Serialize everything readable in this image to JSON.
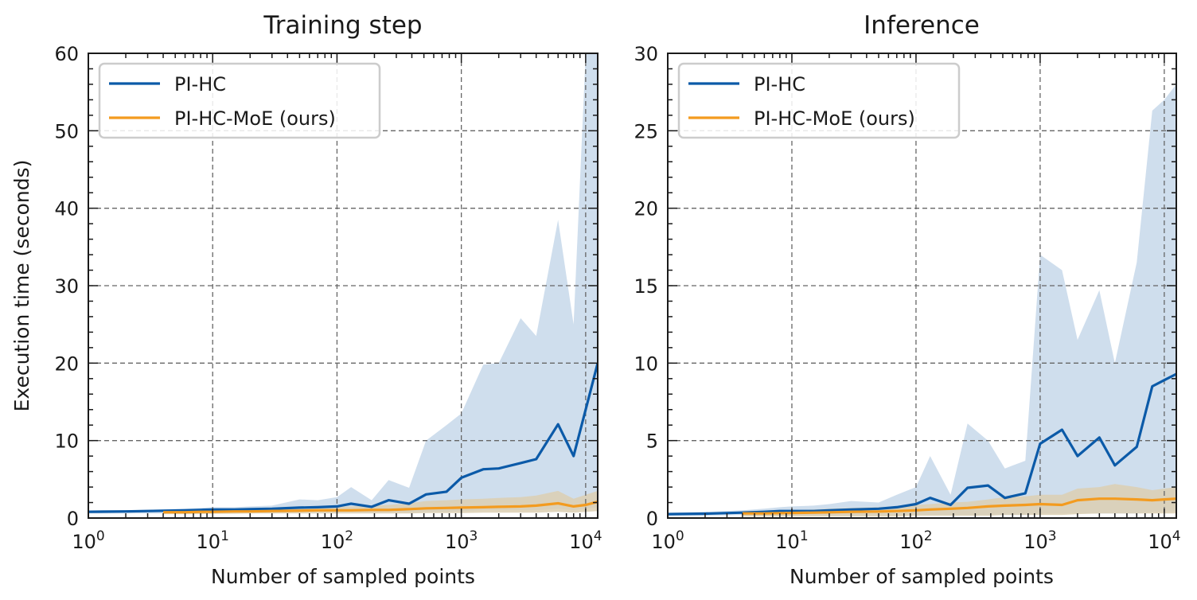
{
  "colors": {
    "pihc_line": "#0b5aa8",
    "pihc_band": "#cfdeed",
    "moe_line": "#f39b1f",
    "moe_band": "#dccfb2",
    "grid": "#666666"
  },
  "shared": {
    "ylabel": "Execution time (seconds)",
    "xlabel": "Number of sampled points",
    "xtick_labels": [
      "10^0",
      "10^1",
      "10^2",
      "10^3",
      "10^4"
    ]
  },
  "chart_data": [
    {
      "type": "line",
      "title": "Training step",
      "xlabel": "Number of sampled points",
      "ylabel": "Execution time (seconds)",
      "xscale": "log",
      "xlim": [
        1,
        12500
      ],
      "ylim": [
        0,
        60
      ],
      "yticks": [
        0,
        10,
        20,
        30,
        40,
        50,
        60
      ],
      "ytick_labels": [
        "0",
        "10",
        "20",
        "30",
        "40",
        "50",
        "60"
      ],
      "grid": true,
      "legend": "top-left",
      "series": [
        {
          "name": "PI-HC",
          "color": "#0b5aa8",
          "x": [
            1,
            2,
            4,
            6,
            8,
            10,
            15,
            20,
            30,
            50,
            70,
            100,
            130,
            190,
            260,
            380,
            520,
            760,
            1000,
            1500,
            2000,
            3000,
            4000,
            6000,
            8000,
            10000,
            12500
          ],
          "y": [
            0.8,
            0.85,
            0.95,
            1.0,
            1.05,
            1.1,
            1.1,
            1.15,
            1.2,
            1.35,
            1.4,
            1.5,
            1.85,
            1.45,
            2.3,
            1.85,
            3.05,
            3.4,
            5.2,
            6.3,
            6.4,
            7.1,
            7.6,
            12.1,
            8.0,
            14.0,
            20.0
          ],
          "lower": [
            0.6,
            0.6,
            0.6,
            0.65,
            0.7,
            0.7,
            0.7,
            0.7,
            0.7,
            0.8,
            0.8,
            0.8,
            0.8,
            0.7,
            0.8,
            0.7,
            0.8,
            0.8,
            0.9,
            1.0,
            1.0,
            1.0,
            1.0,
            1.2,
            1.0,
            1.2,
            1.4
          ],
          "upper": [
            1.0,
            1.0,
            1.1,
            1.2,
            1.3,
            1.4,
            1.4,
            1.5,
            1.6,
            2.4,
            2.3,
            2.7,
            4.0,
            2.3,
            4.9,
            3.9,
            10.0,
            12.0,
            13.5,
            19.8,
            20.0,
            25.8,
            23.5,
            38.5,
            25.0,
            60.0,
            60.0
          ]
        },
        {
          "name": "PI-HC-MoE (ours)",
          "color": "#f39b1f",
          "x": [
            4,
            6,
            8,
            10,
            15,
            20,
            30,
            50,
            70,
            100,
            130,
            190,
            260,
            380,
            520,
            760,
            1000,
            1500,
            2000,
            3000,
            4000,
            6000,
            8000,
            10000,
            12500
          ],
          "y": [
            0.75,
            0.75,
            0.8,
            0.8,
            0.85,
            0.85,
            0.9,
            0.95,
            1.0,
            1.0,
            1.0,
            1.05,
            1.05,
            1.15,
            1.25,
            1.3,
            1.35,
            1.4,
            1.45,
            1.5,
            1.6,
            1.9,
            1.5,
            1.7,
            2.1
          ],
          "lower": [
            0.5,
            0.5,
            0.5,
            0.55,
            0.55,
            0.6,
            0.6,
            0.6,
            0.6,
            0.6,
            0.6,
            0.6,
            0.6,
            0.6,
            0.65,
            0.65,
            0.65,
            0.7,
            0.7,
            0.7,
            0.7,
            0.8,
            0.7,
            0.8,
            0.9
          ],
          "upper": [
            1.0,
            1.0,
            1.1,
            1.1,
            1.15,
            1.2,
            1.25,
            1.3,
            1.4,
            1.45,
            1.5,
            1.6,
            1.7,
            1.9,
            2.2,
            2.3,
            2.4,
            2.5,
            2.6,
            2.7,
            2.9,
            3.5,
            2.5,
            3.0,
            3.5
          ]
        }
      ]
    },
    {
      "type": "line",
      "title": "Inference",
      "xlabel": "Number of sampled points",
      "ylabel": "",
      "xscale": "log",
      "xlim": [
        1,
        12500
      ],
      "ylim": [
        0,
        30
      ],
      "yticks": [
        0,
        5,
        10,
        15,
        20,
        25,
        30
      ],
      "ytick_labels": [
        "0",
        "5",
        "10",
        "15",
        "20",
        "25",
        "30"
      ],
      "grid": true,
      "legend": "top-left",
      "series": [
        {
          "name": "PI-HC",
          "color": "#0b5aa8",
          "x": [
            1,
            2,
            4,
            6,
            8,
            10,
            15,
            20,
            30,
            50,
            70,
            100,
            130,
            190,
            260,
            380,
            520,
            760,
            1000,
            1500,
            2000,
            3000,
            4000,
            6000,
            8000,
            10000,
            12500
          ],
          "y": [
            0.25,
            0.28,
            0.35,
            0.4,
            0.45,
            0.45,
            0.45,
            0.5,
            0.55,
            0.6,
            0.7,
            0.9,
            1.3,
            0.85,
            1.95,
            2.1,
            1.3,
            1.6,
            4.8,
            5.7,
            4.0,
            5.2,
            3.4,
            4.6,
            8.5,
            8.9,
            9.3
          ],
          "lower": [
            0.15,
            0.15,
            0.2,
            0.2,
            0.2,
            0.2,
            0.2,
            0.2,
            0.2,
            0.2,
            0.2,
            0.2,
            0.2,
            0.2,
            0.2,
            0.2,
            0.2,
            0.2,
            0.3,
            0.3,
            0.3,
            0.3,
            0.3,
            0.3,
            0.4,
            0.4,
            0.4
          ],
          "upper": [
            0.35,
            0.4,
            0.5,
            0.6,
            0.7,
            0.75,
            0.8,
            0.9,
            1.1,
            1.0,
            1.5,
            2.0,
            4.0,
            1.5,
            6.1,
            5.0,
            3.2,
            3.7,
            17.0,
            16.0,
            11.5,
            14.7,
            10.0,
            16.5,
            26.3,
            27.0,
            28.0
          ]
        },
        {
          "name": "PI-HC-MoE (ours)",
          "color": "#f39b1f",
          "x": [
            4,
            6,
            8,
            10,
            15,
            20,
            30,
            50,
            70,
            100,
            130,
            190,
            260,
            380,
            520,
            760,
            1000,
            1500,
            2000,
            3000,
            4000,
            6000,
            8000,
            10000,
            12500
          ],
          "y": [
            0.3,
            0.3,
            0.32,
            0.33,
            0.35,
            0.37,
            0.4,
            0.42,
            0.45,
            0.5,
            0.55,
            0.6,
            0.65,
            0.75,
            0.8,
            0.85,
            0.9,
            0.85,
            1.15,
            1.25,
            1.25,
            1.2,
            1.15,
            1.2,
            1.25
          ],
          "lower": [
            0.1,
            0.1,
            0.1,
            0.1,
            0.1,
            0.1,
            0.1,
            0.1,
            0.1,
            0.15,
            0.15,
            0.15,
            0.15,
            0.15,
            0.2,
            0.2,
            0.2,
            0.2,
            0.25,
            0.3,
            0.3,
            0.3,
            0.3,
            0.3,
            0.3
          ],
          "upper": [
            0.45,
            0.45,
            0.5,
            0.5,
            0.55,
            0.6,
            0.65,
            0.7,
            0.75,
            0.85,
            0.9,
            1.0,
            1.05,
            1.2,
            1.35,
            1.4,
            1.5,
            1.5,
            1.9,
            2.0,
            2.2,
            2.0,
            1.8,
            1.9,
            2.0
          ]
        }
      ]
    }
  ]
}
